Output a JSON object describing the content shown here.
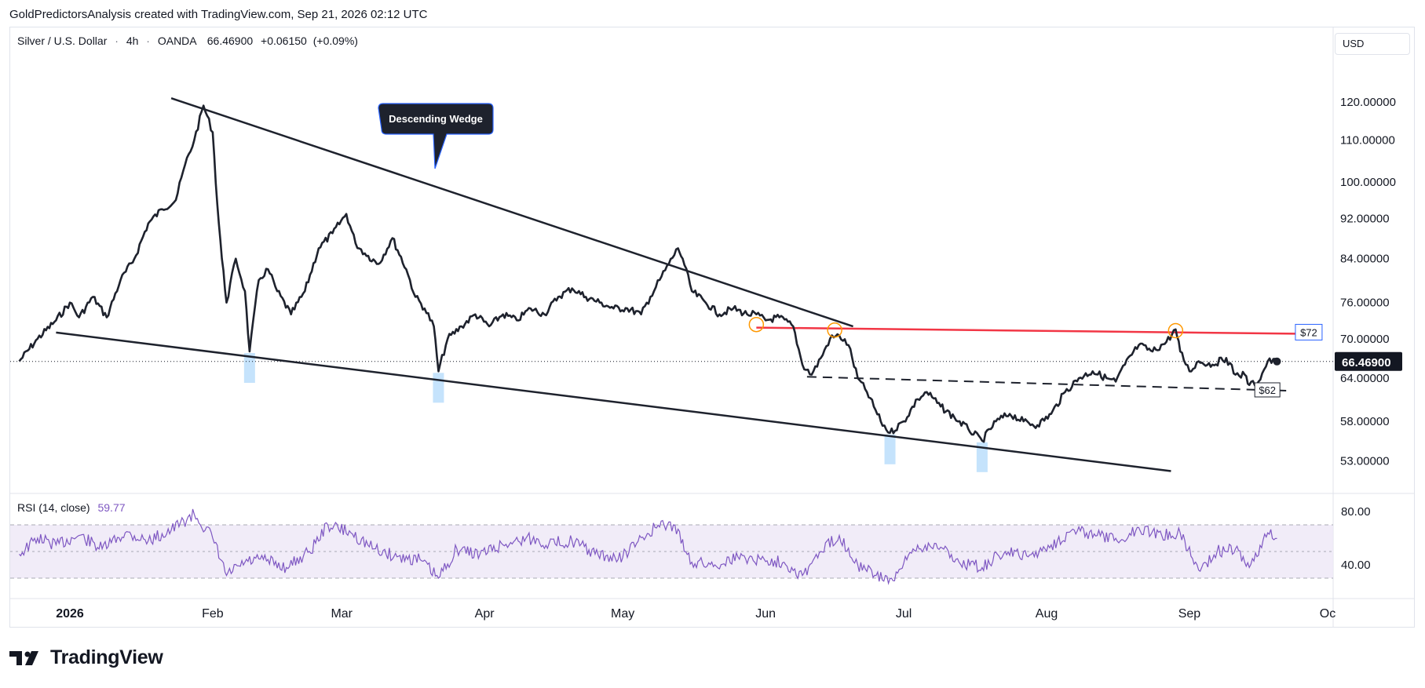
{
  "header": {
    "caption": "GoldPredictorsAnalysis created with TradingView.com, Sep 21, 2026 02:12 UTC"
  },
  "legend": {
    "symbol": "Silver / U.S. Dollar",
    "sep": "·",
    "interval": "4h",
    "source": "OANDA",
    "price": "66.46900",
    "change": "+0.06150",
    "change_pct": "(+0.09%)"
  },
  "currency": "USD",
  "rsi": {
    "label": "RSI (14, close)",
    "value": "59.77"
  },
  "brand": {
    "name": "TradingView"
  },
  "colors": {
    "price_line": "#1e222d",
    "resistance": "#f23645",
    "rsi_line": "#7e57c2",
    "rsi_band": "#ede7f6",
    "highlight": "#bbdefb",
    "circle": "#ff9800"
  },
  "chart_data": {
    "type": "line",
    "title": "Silver / U.S. Dollar · 4h · OANDA",
    "y_scale": "log",
    "ylim": [
      47,
      135
    ],
    "y_ticks": [
      "120.00000",
      "110.00000",
      "100.00000",
      "92.00000",
      "84.00000",
      "76.00000",
      "70.00000",
      "64.00000",
      "58.00000",
      "53.00000"
    ],
    "x_ticks": [
      "2026",
      "Feb",
      "Mar",
      "Apr",
      "May",
      "Jun",
      "Jul",
      "Aug",
      "Sep",
      "Oc"
    ],
    "last_price_label": "66.46900",
    "series": [
      {
        "values_by_date": [
          [
            "2025-12-21",
            66.5
          ],
          [
            "2025-12-25",
            70
          ],
          [
            "2025-12-29",
            73
          ],
          [
            "2026-01-01",
            76
          ],
          [
            "2026-01-03",
            73.5
          ],
          [
            "2026-01-06",
            77
          ],
          [
            "2026-01-09",
            73.5
          ],
          [
            "2026-01-12",
            80
          ],
          [
            "2026-01-15",
            84
          ],
          [
            "2026-01-18",
            91
          ],
          [
            "2026-01-21",
            94
          ],
          [
            "2026-01-24",
            96
          ],
          [
            "2026-01-26",
            104
          ],
          [
            "2026-01-28",
            110
          ],
          [
            "2026-01-30",
            119
          ],
          [
            "2026-02-01",
            112
          ],
          [
            "2026-02-02",
            95
          ],
          [
            "2026-02-03",
            84
          ],
          [
            "2026-02-04",
            76
          ],
          [
            "2026-02-06",
            84
          ],
          [
            "2026-02-08",
            78
          ],
          [
            "2026-02-09",
            68
          ],
          [
            "2026-02-11",
            80
          ],
          [
            "2026-02-13",
            82
          ],
          [
            "2026-02-15",
            78
          ],
          [
            "2026-02-18",
            74
          ],
          [
            "2026-02-21",
            78
          ],
          [
            "2026-02-24",
            86
          ],
          [
            "2026-02-27",
            89
          ],
          [
            "2026-03-02",
            93
          ],
          [
            "2026-03-04",
            87
          ],
          [
            "2026-03-06",
            85
          ],
          [
            "2026-03-09",
            83
          ],
          [
            "2026-03-12",
            88
          ],
          [
            "2026-03-15",
            82
          ],
          [
            "2026-03-17",
            77
          ],
          [
            "2026-03-19",
            75
          ],
          [
            "2026-03-21",
            72
          ],
          [
            "2026-03-22",
            65
          ],
          [
            "2026-03-24",
            70
          ],
          [
            "2026-03-27",
            72
          ],
          [
            "2026-03-30",
            74
          ],
          [
            "2026-04-02",
            72
          ],
          [
            "2026-04-05",
            74
          ],
          [
            "2026-04-08",
            73
          ],
          [
            "2026-04-11",
            75
          ],
          [
            "2026-04-14",
            74
          ],
          [
            "2026-04-17",
            77
          ],
          [
            "2026-04-20",
            78.5
          ],
          [
            "2026-04-23",
            77
          ],
          [
            "2026-04-26",
            76
          ],
          [
            "2026-04-29",
            75
          ],
          [
            "2026-05-02",
            75
          ],
          [
            "2026-05-05",
            74
          ],
          [
            "2026-05-07",
            77
          ],
          [
            "2026-05-09",
            80
          ],
          [
            "2026-05-11",
            83
          ],
          [
            "2026-05-13",
            86
          ],
          [
            "2026-05-14",
            84
          ],
          [
            "2026-05-16",
            78
          ],
          [
            "2026-05-19",
            76
          ],
          [
            "2026-05-22",
            74
          ],
          [
            "2026-05-25",
            75
          ],
          [
            "2026-05-28",
            74
          ],
          [
            "2026-05-30",
            74
          ],
          [
            "2026-06-01",
            73
          ],
          [
            "2026-06-04",
            73.5
          ],
          [
            "2026-06-07",
            72
          ],
          [
            "2026-06-09",
            66
          ],
          [
            "2026-06-11",
            64.5
          ],
          [
            "2026-06-13",
            67
          ],
          [
            "2026-06-15",
            70
          ],
          [
            "2026-06-17",
            70.5
          ],
          [
            "2026-06-19",
            69
          ],
          [
            "2026-06-21",
            64
          ],
          [
            "2026-06-23",
            62
          ],
          [
            "2026-06-26",
            58
          ],
          [
            "2026-06-28",
            56.5
          ],
          [
            "2026-07-01",
            58
          ],
          [
            "2026-07-04",
            61
          ],
          [
            "2026-07-06",
            62
          ],
          [
            "2026-07-09",
            60
          ],
          [
            "2026-07-12",
            58.5
          ],
          [
            "2026-07-15",
            57
          ],
          [
            "2026-07-18",
            55.5
          ],
          [
            "2026-07-21",
            58
          ],
          [
            "2026-07-24",
            59
          ],
          [
            "2026-07-27",
            58
          ],
          [
            "2026-07-30",
            57.5
          ],
          [
            "2026-08-02",
            59
          ],
          [
            "2026-08-05",
            62
          ],
          [
            "2026-08-08",
            64
          ],
          [
            "2026-08-11",
            65
          ],
          [
            "2026-08-14",
            64
          ],
          [
            "2026-08-16",
            63.5
          ],
          [
            "2026-08-18",
            66
          ],
          [
            "2026-08-21",
            69
          ],
          [
            "2026-08-24",
            68
          ],
          [
            "2026-08-27",
            69.5
          ],
          [
            "2026-08-29",
            71.5
          ],
          [
            "2026-08-30",
            68
          ],
          [
            "2026-09-01",
            65
          ],
          [
            "2026-09-03",
            66.5
          ],
          [
            "2026-09-06",
            66
          ],
          [
            "2026-09-09",
            67
          ],
          [
            "2026-09-11",
            64.5
          ],
          [
            "2026-09-13",
            64.5
          ],
          [
            "2026-09-14",
            63
          ],
          [
            "2026-09-16",
            63.5
          ],
          [
            "2026-09-18",
            66.5
          ],
          [
            "2026-09-20",
            66.469
          ]
        ]
      }
    ],
    "annotations": {
      "wedge_label": "Descending Wedge",
      "upper_trendline": [
        [
          "2026-01-23",
          121
        ],
        [
          "2026-06-20",
          72
        ]
      ],
      "lower_trendline": [
        [
          "2025-12-29",
          71
        ],
        [
          "2026-08-28",
          51.8
        ]
      ],
      "resistance": {
        "label": "$72",
        "from": "2026-05-30",
        "to": "2026-09-24",
        "level_start": 71.8,
        "level_end": 70.8
      },
      "support": {
        "label": "$62",
        "from": "2026-06-10",
        "to": "2026-09-22",
        "level_start": 64.2,
        "level_end": 62.2
      },
      "circles": [
        [
          "2026-05-30",
          72.3
        ],
        [
          "2026-06-16",
          71.4
        ],
        [
          "2026-08-29",
          71.3
        ]
      ],
      "highlight_dates": [
        "2026-02-09",
        "2026-03-22",
        "2026-06-28",
        "2026-07-18"
      ]
    }
  },
  "rsi_data": {
    "ylim": [
      20,
      90
    ],
    "band": [
      30,
      70
    ],
    "y_ticks": [
      "80.00",
      "40.00"
    ],
    "points": [
      [
        "2025-12-21",
        48
      ],
      [
        "2025-12-25",
        60
      ],
      [
        "2025-12-29",
        55
      ],
      [
        "2026-01-03",
        62
      ],
      [
        "2026-01-08",
        52
      ],
      [
        "2026-01-13",
        64
      ],
      [
        "2026-01-18",
        58
      ],
      [
        "2026-01-23",
        66
      ],
      [
        "2026-01-28",
        78
      ],
      [
        "2026-02-01",
        60
      ],
      [
        "2026-02-04",
        32
      ],
      [
        "2026-02-08",
        42
      ],
      [
        "2026-02-12",
        44
      ],
      [
        "2026-02-17",
        38
      ],
      [
        "2026-02-22",
        50
      ],
      [
        "2026-02-26",
        70
      ],
      [
        "2026-03-03",
        64
      ],
      [
        "2026-03-08",
        52
      ],
      [
        "2026-03-13",
        46
      ],
      [
        "2026-03-18",
        44
      ],
      [
        "2026-03-22",
        30
      ],
      [
        "2026-03-26",
        52
      ],
      [
        "2026-03-31",
        48
      ],
      [
        "2026-04-05",
        55
      ],
      [
        "2026-04-10",
        60
      ],
      [
        "2026-04-15",
        56
      ],
      [
        "2026-04-20",
        58
      ],
      [
        "2026-04-25",
        48
      ],
      [
        "2026-04-30",
        44
      ],
      [
        "2026-05-04",
        56
      ],
      [
        "2026-05-08",
        68
      ],
      [
        "2026-05-12",
        70
      ],
      [
        "2026-05-16",
        42
      ],
      [
        "2026-05-21",
        40
      ],
      [
        "2026-05-26",
        46
      ],
      [
        "2026-05-31",
        44
      ],
      [
        "2026-06-05",
        42
      ],
      [
        "2026-06-09",
        32
      ],
      [
        "2026-06-13",
        50
      ],
      [
        "2026-06-17",
        62
      ],
      [
        "2026-06-21",
        40
      ],
      [
        "2026-06-25",
        32
      ],
      [
        "2026-06-29",
        28
      ],
      [
        "2026-07-03",
        52
      ],
      [
        "2026-07-08",
        56
      ],
      [
        "2026-07-13",
        42
      ],
      [
        "2026-07-18",
        38
      ],
      [
        "2026-07-23",
        50
      ],
      [
        "2026-07-28",
        46
      ],
      [
        "2026-08-02",
        55
      ],
      [
        "2026-08-07",
        66
      ],
      [
        "2026-08-12",
        62
      ],
      [
        "2026-08-17",
        58
      ],
      [
        "2026-08-21",
        68
      ],
      [
        "2026-08-26",
        62
      ],
      [
        "2026-08-30",
        64
      ],
      [
        "2026-09-03",
        36
      ],
      [
        "2026-09-07",
        50
      ],
      [
        "2026-09-11",
        52
      ],
      [
        "2026-09-14",
        38
      ],
      [
        "2026-09-18",
        64
      ],
      [
        "2026-09-20",
        59.77
      ]
    ]
  }
}
